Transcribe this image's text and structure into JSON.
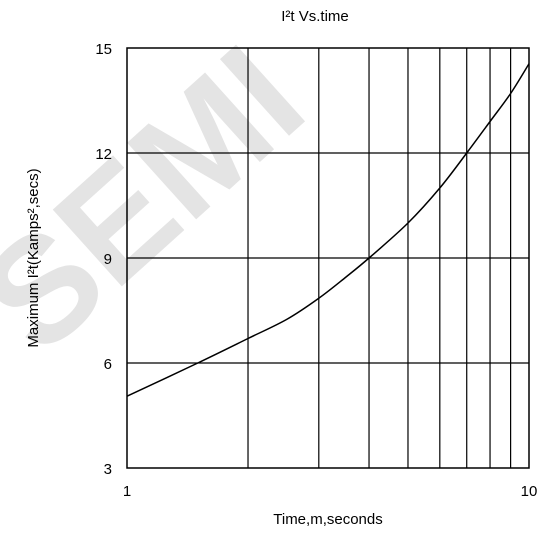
{
  "chart_data": {
    "type": "line",
    "title": "I²t  Vs.time",
    "xlabel": "Time,m,seconds",
    "ylabel": "Maximum I²t(Kamps²,secs)",
    "x_scale": "log",
    "xlim": [
      1,
      10
    ],
    "ylim": [
      3,
      15
    ],
    "x_ticks": [
      "1",
      "10"
    ],
    "y_ticks": [
      "3",
      "6",
      "9",
      "12",
      "15"
    ],
    "grid": true,
    "legend": "none",
    "series": [
      {
        "color": "#000000",
        "x": [
          1,
          1.5,
          2,
          2.5,
          3,
          3.5,
          4,
          5,
          6,
          7,
          8,
          9,
          10
        ],
        "y": [
          5.05,
          6.0,
          6.7,
          7.25,
          7.85,
          8.45,
          9.0,
          10.0,
          11.0,
          12.0,
          12.9,
          13.7,
          14.55
        ]
      }
    ]
  },
  "watermark": {
    "text": "SEMI",
    "color": "#e4e4e4"
  }
}
